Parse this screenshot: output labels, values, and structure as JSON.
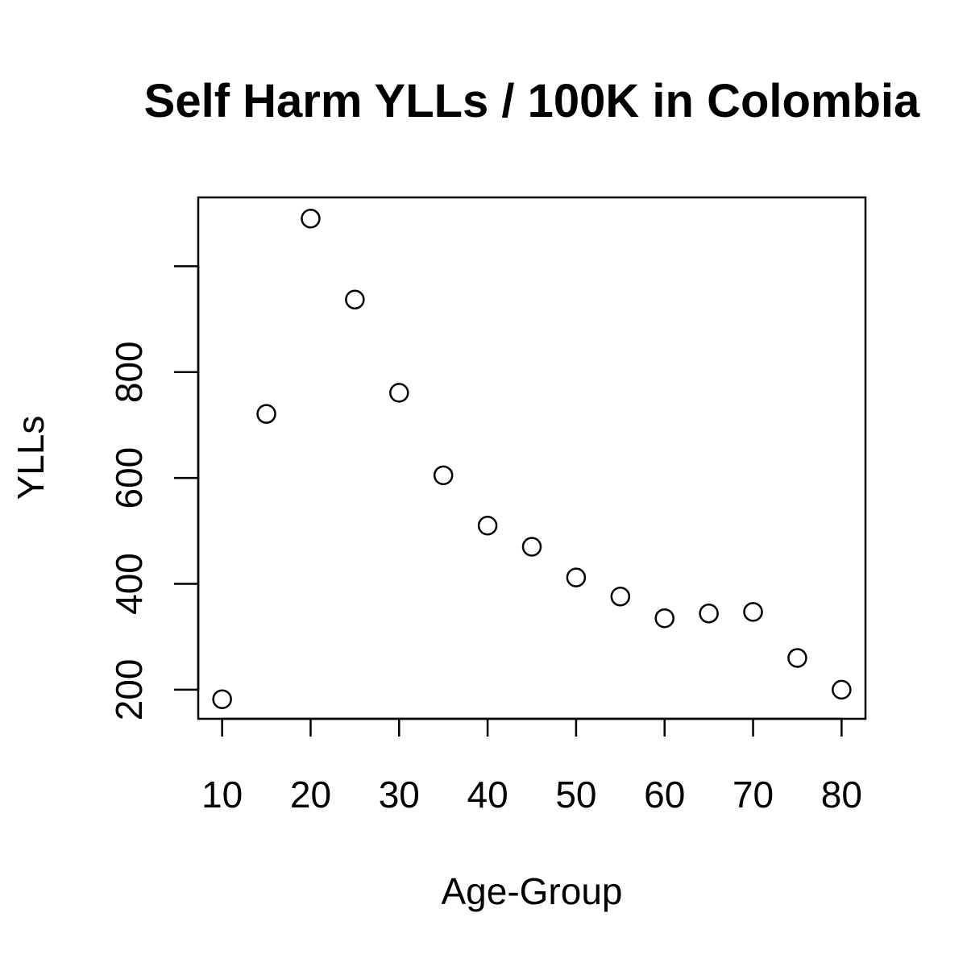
{
  "chart_data": {
    "type": "scatter",
    "title": "Self Harm YLLs / 100K in Colombia",
    "xlabel": "Age-Group",
    "ylabel": "YLLs",
    "x": [
      10,
      15,
      20,
      25,
      30,
      35,
      40,
      45,
      50,
      55,
      60,
      65,
      70,
      75,
      80
    ],
    "y": [
      182,
      721,
      1090,
      937,
      761,
      605,
      510,
      470,
      412,
      376,
      335,
      344,
      347,
      260,
      200
    ],
    "xlim": [
      7.3,
      82.7
    ],
    "ylim": [
      145,
      1130
    ],
    "xticks": [
      10,
      20,
      30,
      40,
      50,
      60,
      70,
      80
    ],
    "yticks": [
      200,
      400,
      600,
      800,
      1000
    ],
    "ytick_labels": [
      "200",
      "400",
      "600",
      "800",
      ""
    ],
    "grid": false,
    "marker": "open-circle",
    "marker_color": "#000000"
  }
}
